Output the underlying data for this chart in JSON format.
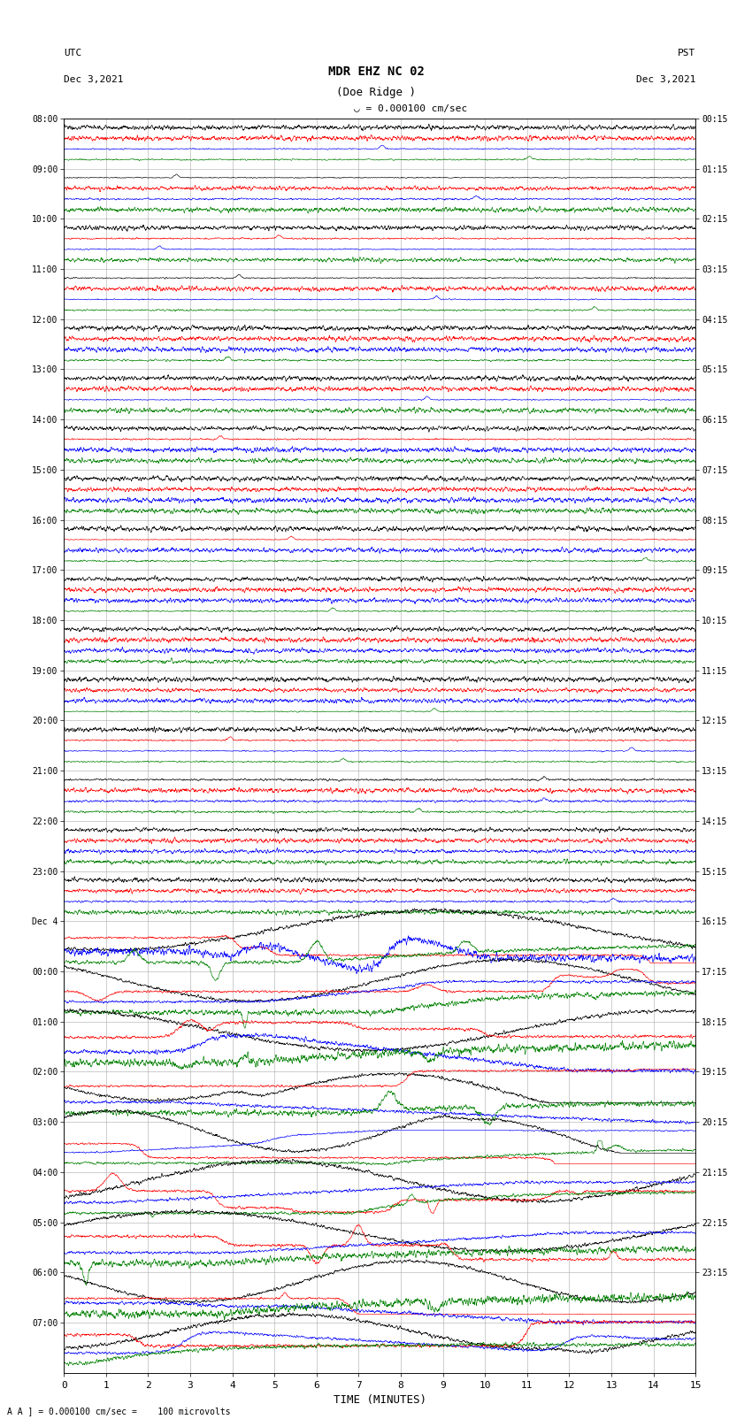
{
  "title_line1": "MDR EHZ NC 02",
  "title_line2": "(Doe Ridge )",
  "scale_label": "= 0.000100 cm/sec",
  "utc_label": "UTC",
  "utc_date": "Dec 3,2021",
  "pst_label": "PST",
  "pst_date": "Dec 3,2021",
  "bottom_label": "A ] = 0.000100 cm/sec =    100 microvolts",
  "xlabel": "TIME (MINUTES)",
  "left_times": [
    "08:00",
    "09:00",
    "10:00",
    "11:00",
    "12:00",
    "13:00",
    "14:00",
    "15:00",
    "16:00",
    "17:00",
    "18:00",
    "19:00",
    "20:00",
    "21:00",
    "22:00",
    "23:00",
    "Dec 4",
    "00:00",
    "01:00",
    "02:00",
    "03:00",
    "04:00",
    "05:00",
    "06:00",
    "07:00"
  ],
  "right_times": [
    "00:15",
    "01:15",
    "02:15",
    "03:15",
    "04:15",
    "05:15",
    "06:15",
    "07:15",
    "08:15",
    "09:15",
    "10:15",
    "11:15",
    "12:15",
    "13:15",
    "14:15",
    "15:15",
    "16:15",
    "17:15",
    "18:15",
    "19:15",
    "20:15",
    "21:15",
    "22:15",
    "23:15"
  ],
  "num_rows": 25,
  "traces_per_row": 4,
  "colors": [
    "black",
    "red",
    "blue",
    "green"
  ],
  "xlim": [
    0,
    15
  ],
  "xticks": [
    0,
    1,
    2,
    3,
    4,
    5,
    6,
    7,
    8,
    9,
    10,
    11,
    12,
    13,
    14,
    15
  ],
  "bg_color": "white",
  "grid_color": "#aaaaaa",
  "figure_width": 8.5,
  "figure_height": 16.13,
  "dpi": 100
}
